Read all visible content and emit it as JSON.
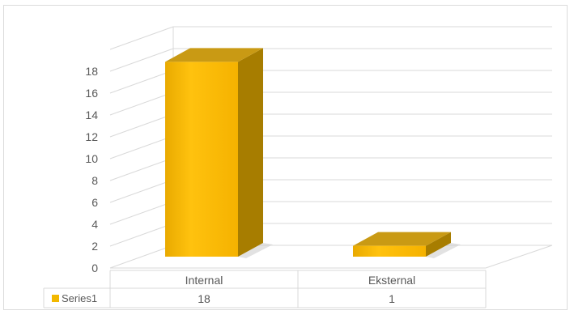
{
  "chart_data": {
    "type": "bar",
    "categories": [
      "Internal",
      "Eksternal"
    ],
    "series": [
      {
        "name": "Series1",
        "values": [
          18,
          1
        ]
      }
    ],
    "ylim": [
      0,
      18
    ],
    "yticks": [
      0,
      2,
      4,
      6,
      8,
      10,
      12,
      14,
      16,
      18
    ],
    "grid": true,
    "data_table": true,
    "legend_position": "data-table",
    "bar_color": "#f2b800",
    "bar_top_color": "#c99a14",
    "bar_side_color": "#a77d00"
  }
}
